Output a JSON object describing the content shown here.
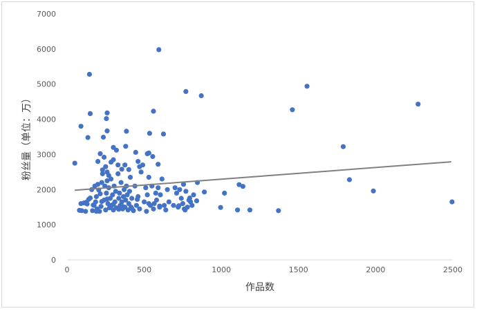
{
  "chart_data": {
    "type": "scatter",
    "title": "",
    "xlabel": "作品数",
    "ylabel": "粉丝量（单位：万）",
    "xlim": [
      0,
      2500
    ],
    "ylim": [
      0,
      7000
    ],
    "xticks": [
      0,
      500,
      1000,
      1500,
      2000,
      2500
    ],
    "yticks": [
      0,
      1000,
      2000,
      3000,
      4000,
      5000,
      6000,
      7000
    ],
    "grid": false,
    "legend": "none",
    "colors": {
      "point": "#4472c4",
      "trendline": "#808080",
      "axis": "#d9d9d9",
      "tick_text": "#595959"
    },
    "trendline": {
      "type": "linear",
      "x": [
        50,
        2490
      ],
      "y": [
        1980,
        2790
      ]
    },
    "points": [
      [
        50,
        2750
      ],
      [
        90,
        3800
      ],
      [
        145,
        5280
      ],
      [
        150,
        4160
      ],
      [
        135,
        3480
      ],
      [
        260,
        4180
      ],
      [
        255,
        4020
      ],
      [
        260,
        3670
      ],
      [
        215,
        3020
      ],
      [
        235,
        3490
      ],
      [
        300,
        3200
      ],
      [
        320,
        3120
      ],
      [
        300,
        2850
      ],
      [
        285,
        2780
      ],
      [
        240,
        2920
      ],
      [
        250,
        2650
      ],
      [
        230,
        2560
      ],
      [
        260,
        2500
      ],
      [
        200,
        2800
      ],
      [
        270,
        2400
      ],
      [
        330,
        2700
      ],
      [
        355,
        2580
      ],
      [
        375,
        2700
      ],
      [
        400,
        2570
      ],
      [
        385,
        3660
      ],
      [
        380,
        3230
      ],
      [
        445,
        3060
      ],
      [
        460,
        2800
      ],
      [
        470,
        2650
      ],
      [
        520,
        3020
      ],
      [
        530,
        3040
      ],
      [
        535,
        3600
      ],
      [
        560,
        4230
      ],
      [
        555,
        2940
      ],
      [
        590,
        2720
      ],
      [
        595,
        5980
      ],
      [
        625,
        3580
      ],
      [
        770,
        4790
      ],
      [
        870,
        4670
      ],
      [
        1460,
        4270
      ],
      [
        1555,
        4940
      ],
      [
        1790,
        3220
      ],
      [
        1830,
        2280
      ],
      [
        1985,
        1960
      ],
      [
        2275,
        4430
      ],
      [
        2495,
        1650
      ],
      [
        80,
        1410
      ],
      [
        90,
        1600
      ],
      [
        110,
        1620
      ],
      [
        120,
        1380
      ],
      [
        130,
        1590
      ],
      [
        140,
        1720
      ],
      [
        150,
        1760
      ],
      [
        160,
        2000
      ],
      [
        165,
        1400
      ],
      [
        175,
        1550
      ],
      [
        180,
        2100
      ],
      [
        185,
        1650
      ],
      [
        190,
        1800
      ],
      [
        195,
        1450
      ],
      [
        200,
        2150
      ],
      [
        205,
        1990
      ],
      [
        210,
        1380
      ],
      [
        215,
        1880
      ],
      [
        220,
        1520
      ],
      [
        225,
        2200
      ],
      [
        230,
        2450
      ],
      [
        240,
        1700
      ],
      [
        245,
        2100
      ],
      [
        250,
        1420
      ],
      [
        255,
        1900
      ],
      [
        260,
        2250
      ],
      [
        265,
        1600
      ],
      [
        270,
        2050
      ],
      [
        275,
        1480
      ],
      [
        280,
        1750
      ],
      [
        285,
        2300
      ],
      [
        290,
        1550
      ],
      [
        295,
        1850
      ],
      [
        300,
        1420
      ],
      [
        305,
        2100
      ],
      [
        310,
        1650
      ],
      [
        315,
        1950
      ],
      [
        320,
        1480
      ],
      [
        330,
        2450
      ],
      [
        335,
        1750
      ],
      [
        340,
        1900
      ],
      [
        345,
        1550
      ],
      [
        350,
        2200
      ],
      [
        355,
        1650
      ],
      [
        360,
        1450
      ],
      [
        365,
        1800
      ],
      [
        370,
        2000
      ],
      [
        375,
        1500
      ],
      [
        380,
        1700
      ],
      [
        385,
        2100
      ],
      [
        390,
        1850
      ],
      [
        395,
        1420
      ],
      [
        400,
        1600
      ],
      [
        405,
        1950
      ],
      [
        410,
        2350
      ],
      [
        415,
        1500
      ],
      [
        420,
        1750
      ],
      [
        430,
        1400
      ],
      [
        440,
        2100
      ],
      [
        450,
        1550
      ],
      [
        460,
        1800
      ],
      [
        470,
        1450
      ],
      [
        480,
        2500
      ],
      [
        490,
        2700
      ],
      [
        500,
        1650
      ],
      [
        510,
        2050
      ],
      [
        515,
        1380
      ],
      [
        520,
        1850
      ],
      [
        530,
        2350
      ],
      [
        540,
        1550
      ],
      [
        550,
        2100
      ],
      [
        560,
        1450
      ],
      [
        565,
        1600
      ],
      [
        575,
        1900
      ],
      [
        580,
        1700
      ],
      [
        590,
        2050
      ],
      [
        600,
        1500
      ],
      [
        605,
        1850
      ],
      [
        615,
        2300
      ],
      [
        630,
        1550
      ],
      [
        640,
        1420
      ],
      [
        650,
        2000
      ],
      [
        660,
        1650
      ],
      [
        690,
        1550
      ],
      [
        700,
        2050
      ],
      [
        710,
        1900
      ],
      [
        720,
        1500
      ],
      [
        730,
        2000
      ],
      [
        740,
        1750
      ],
      [
        750,
        1600
      ],
      [
        755,
        2150
      ],
      [
        760,
        1450
      ],
      [
        770,
        1950
      ],
      [
        780,
        1500
      ],
      [
        790,
        1700
      ],
      [
        800,
        1650
      ],
      [
        810,
        1550
      ],
      [
        820,
        1850
      ],
      [
        840,
        1680
      ],
      [
        845,
        2200
      ],
      [
        890,
        1930
      ],
      [
        995,
        1490
      ],
      [
        1020,
        1900
      ],
      [
        1105,
        1420
      ],
      [
        1115,
        2140
      ],
      [
        1140,
        2090
      ],
      [
        1185,
        1420
      ],
      [
        1370,
        1400
      ],
      [
        95,
        1400
      ],
      [
        125,
        1640
      ],
      [
        170,
        1560
      ],
      [
        190,
        1380
      ],
      [
        225,
        1660
      ],
      [
        260,
        1730
      ],
      [
        300,
        1580
      ],
      [
        335,
        1440
      ],
      [
        360,
        1520
      ],
      [
        420,
        1460
      ],
      [
        455,
        1720
      ],
      [
        530,
        1600
      ],
      [
        600,
        1530
      ],
      [
        725,
        1540
      ],
      [
        765,
        1420
      ],
      [
        795,
        1760
      ]
    ]
  }
}
